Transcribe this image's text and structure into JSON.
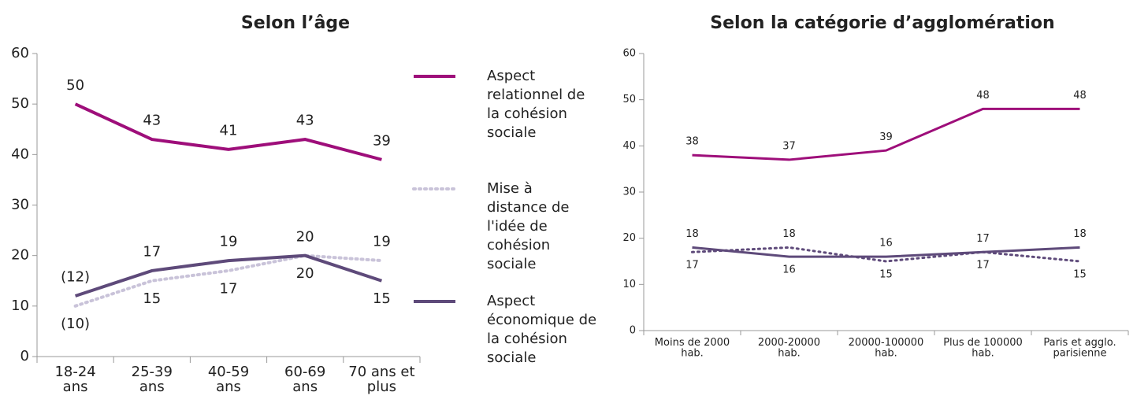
{
  "chart_data": [
    {
      "type": "line",
      "title": "Selon l’âge",
      "categories": [
        "18-24 ans",
        "25-39 ans",
        "40-59 ans",
        "60-69 ans",
        "70 ans et plus"
      ],
      "ylim": [
        0,
        60
      ],
      "yticks": [
        0,
        10,
        20,
        30,
        40,
        50,
        60
      ],
      "legend": "right",
      "series": [
        {
          "name": "Aspect relationnel de la cohésion sociale",
          "color": "#9e0e7a",
          "dash": false,
          "values": [
            50,
            43,
            41,
            43,
            39
          ]
        },
        {
          "name": "Mise à distance de l'idée de cohésion sociale",
          "color": "#c9c3d9",
          "dash": true,
          "values": [
            10,
            15,
            17,
            20,
            19
          ],
          "value_labels": [
            "(10)",
            "15",
            "17",
            "20",
            "19"
          ]
        },
        {
          "name": "Aspect économique de la cohésion sociale",
          "color": "#5e4a7a",
          "dash": false,
          "values": [
            12,
            17,
            19,
            20,
            15
          ],
          "value_labels": [
            "(12)",
            "17",
            "19",
            "20",
            "15"
          ]
        }
      ]
    },
    {
      "type": "line",
      "title": "Selon la catégorie d’agglomération",
      "categories": [
        "Moins de 2000 hab.",
        "2000-20000 hab.",
        "20000-100000 hab.",
        "Plus de 100000 hab.",
        "Paris et agglo. parisienne"
      ],
      "ylim": [
        0,
        60
      ],
      "yticks": [
        0,
        10,
        20,
        30,
        40,
        50,
        60
      ],
      "series": [
        {
          "color": "#9e0e7a",
          "dash": false,
          "values": [
            38,
            37,
            39,
            48,
            48
          ]
        },
        {
          "color": "#5e4a7a",
          "dash": true,
          "values": [
            17,
            18,
            15,
            17,
            15
          ]
        },
        {
          "color": "#5e4a7a",
          "dash": false,
          "values": [
            18,
            16,
            16,
            17,
            18
          ]
        }
      ]
    }
  ]
}
